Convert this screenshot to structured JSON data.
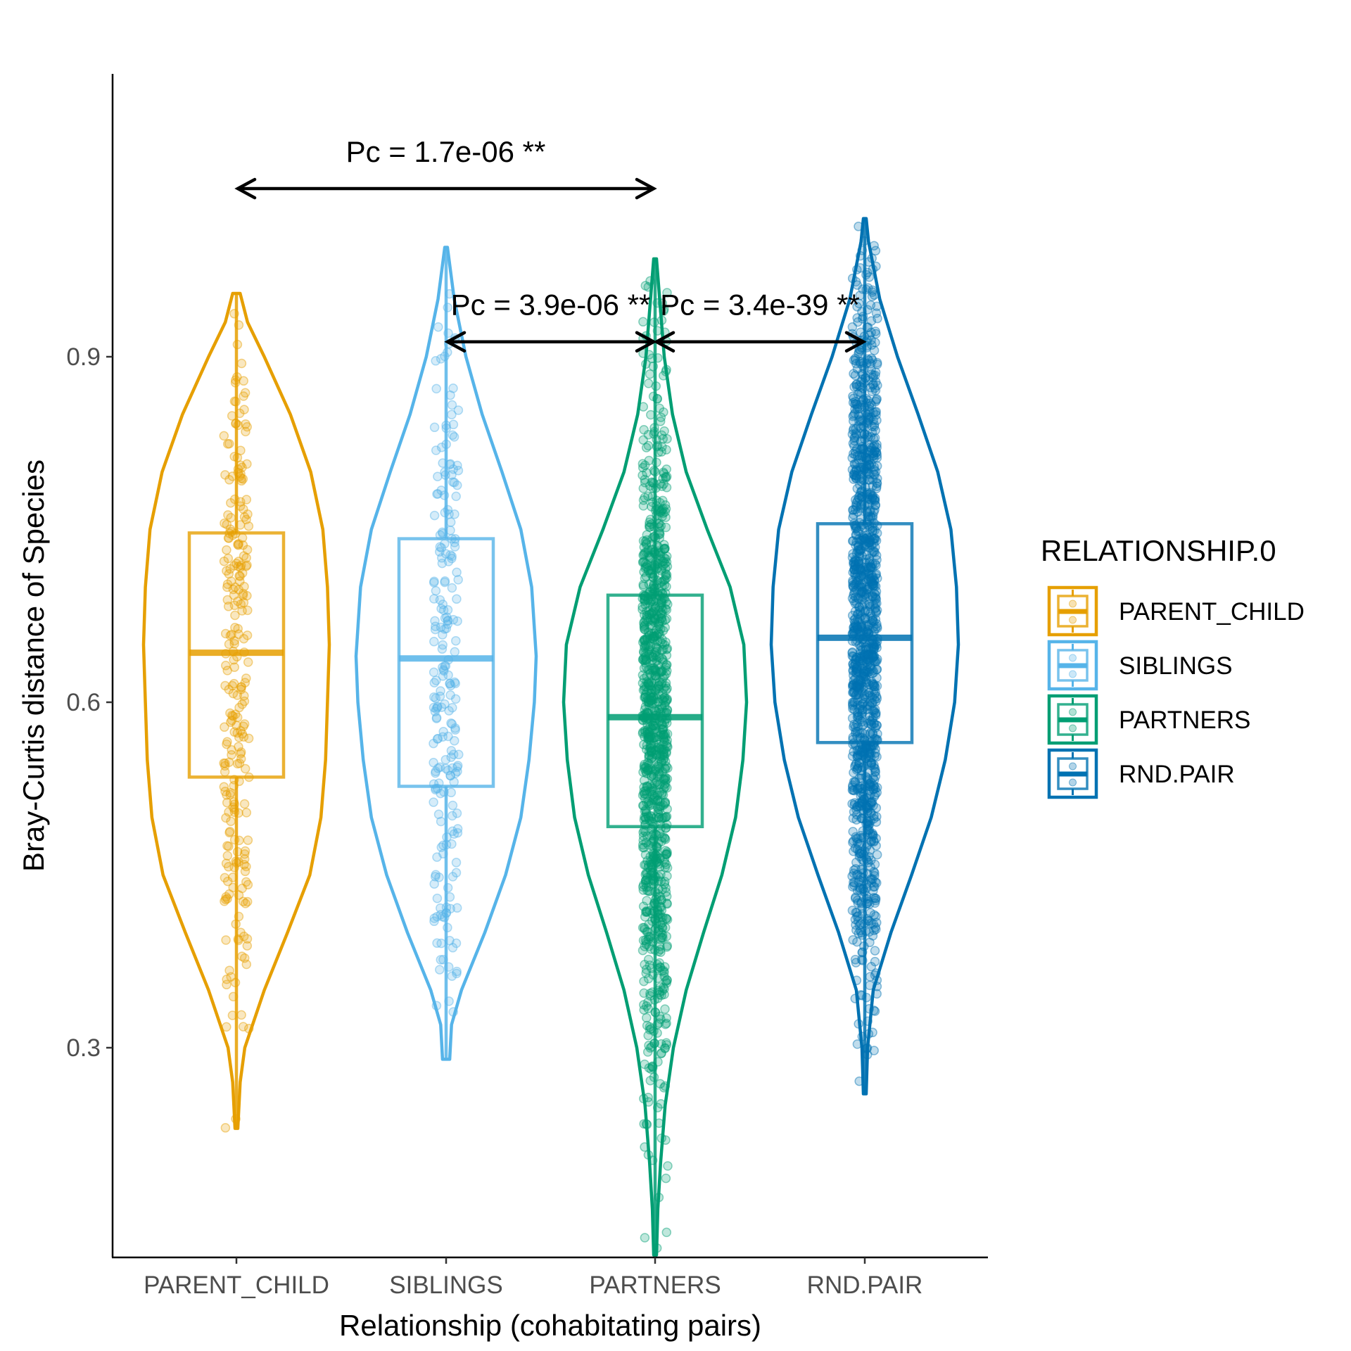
{
  "chart_data": {
    "type": "violin",
    "xlabel": "Relationship (cohabitating pairs)",
    "ylabel": "Bray-Curtis distance of Species",
    "ylim": [
      0.1,
      1.13
    ],
    "yticks": [
      0.3,
      0.6,
      0.9
    ],
    "categories": [
      "PARENT_CHILD",
      "SIBLINGS",
      "PARTNERS",
      "RND.PAIR"
    ],
    "colors": [
      "#E69F00",
      "#56B4E9",
      "#009E73",
      "#0072B2"
    ],
    "legend": {
      "title": "RELATIONSHIP.0",
      "placement": "right",
      "entries": [
        "PARENT_CHILD",
        "SIBLINGS",
        "PARTNERS",
        "RND.PAIR"
      ]
    },
    "grid": false,
    "series": [
      {
        "category": "PARENT_CHILD",
        "min": 0.23,
        "max": 0.955,
        "box": {
          "q1": 0.535,
          "median": 0.643,
          "q3": 0.747
        },
        "density": [
          [
            0.23,
            0.015
          ],
          [
            0.27,
            0.04
          ],
          [
            0.3,
            0.09
          ],
          [
            0.35,
            0.3
          ],
          [
            0.4,
            0.55
          ],
          [
            0.45,
            0.79
          ],
          [
            0.5,
            0.91
          ],
          [
            0.55,
            0.96
          ],
          [
            0.6,
            0.98
          ],
          [
            0.65,
            1.0
          ],
          [
            0.7,
            0.98
          ],
          [
            0.75,
            0.93
          ],
          [
            0.8,
            0.8
          ],
          [
            0.85,
            0.58
          ],
          [
            0.9,
            0.3
          ],
          [
            0.93,
            0.12
          ],
          [
            0.955,
            0.04
          ]
        ],
        "n_points": 260
      },
      {
        "category": "SIBLINGS",
        "min": 0.29,
        "max": 0.995,
        "box": {
          "q1": 0.527,
          "median": 0.638,
          "q3": 0.742
        },
        "density": [
          [
            0.29,
            0.04
          ],
          [
            0.32,
            0.06
          ],
          [
            0.35,
            0.17
          ],
          [
            0.4,
            0.43
          ],
          [
            0.45,
            0.66
          ],
          [
            0.5,
            0.83
          ],
          [
            0.55,
            0.92
          ],
          [
            0.6,
            0.98
          ],
          [
            0.64,
            1.0
          ],
          [
            0.7,
            0.95
          ],
          [
            0.75,
            0.83
          ],
          [
            0.8,
            0.62
          ],
          [
            0.85,
            0.4
          ],
          [
            0.9,
            0.22
          ],
          [
            0.95,
            0.09
          ],
          [
            0.995,
            0.015
          ]
        ],
        "n_points": 230
      },
      {
        "category": "PARTNERS",
        "min": 0.12,
        "max": 0.985,
        "box": {
          "q1": 0.492,
          "median": 0.587,
          "q3": 0.693
        },
        "density": [
          [
            0.12,
            0.015
          ],
          [
            0.16,
            0.03
          ],
          [
            0.2,
            0.06
          ],
          [
            0.25,
            0.11
          ],
          [
            0.3,
            0.2
          ],
          [
            0.35,
            0.34
          ],
          [
            0.4,
            0.53
          ],
          [
            0.45,
            0.73
          ],
          [
            0.5,
            0.88
          ],
          [
            0.55,
            0.96
          ],
          [
            0.6,
            1.0
          ],
          [
            0.65,
            0.97
          ],
          [
            0.7,
            0.82
          ],
          [
            0.75,
            0.57
          ],
          [
            0.8,
            0.34
          ],
          [
            0.85,
            0.19
          ],
          [
            0.9,
            0.1
          ],
          [
            0.95,
            0.05
          ],
          [
            0.985,
            0.015
          ]
        ],
        "n_points": 1100
      },
      {
        "category": "RND.PAIR",
        "min": 0.26,
        "max": 1.02,
        "box": {
          "q1": 0.565,
          "median": 0.656,
          "q3": 0.755
        },
        "density": [
          [
            0.26,
            0.015
          ],
          [
            0.3,
            0.03
          ],
          [
            0.35,
            0.09
          ],
          [
            0.4,
            0.28
          ],
          [
            0.45,
            0.5
          ],
          [
            0.5,
            0.71
          ],
          [
            0.55,
            0.86
          ],
          [
            0.6,
            0.96
          ],
          [
            0.65,
            1.0
          ],
          [
            0.7,
            0.98
          ],
          [
            0.75,
            0.92
          ],
          [
            0.8,
            0.78
          ],
          [
            0.85,
            0.57
          ],
          [
            0.9,
            0.35
          ],
          [
            0.95,
            0.16
          ],
          [
            1.0,
            0.04
          ],
          [
            1.02,
            0.015
          ]
        ],
        "n_points": 1300
      }
    ],
    "annotations": [
      {
        "label": "Pc = 1.7e-06 **",
        "from": "PARENT_CHILD",
        "to": "PARTNERS",
        "y": 1.046
      },
      {
        "label": "Pc = 3.9e-06 **",
        "from": "SIBLINGS",
        "to": "PARTNERS",
        "y": 0.913
      },
      {
        "label": "Pc = 3.4e-39 **",
        "from": "PARTNERS",
        "to": "RND.PAIR",
        "y": 0.913
      }
    ]
  }
}
